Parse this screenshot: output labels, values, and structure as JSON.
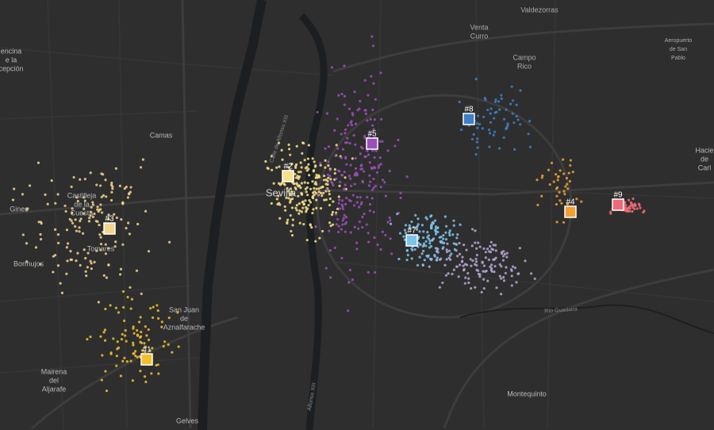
{
  "clusters": [
    {
      "label": "#1",
      "color": "#f0c02e"
    },
    {
      "label": "#2",
      "color": "#f7e08a"
    },
    {
      "label": "#3",
      "color": "#f3d48c"
    },
    {
      "label": "#4",
      "color": "#f0a030"
    },
    {
      "label": "#5",
      "color": "#9b4fb8"
    },
    {
      "label": "#7",
      "color": "#7cc3ea"
    },
    {
      "label": "#8",
      "color": "#3f7fc8"
    },
    {
      "label": "#9",
      "color": "#ee6a78"
    }
  ],
  "places": [
    {
      "lines": [
        "Valdezorras"
      ]
    },
    {
      "lines": [
        "Venta",
        "Curro"
      ]
    },
    {
      "lines": [
        "Campo",
        "Rico"
      ]
    },
    {
      "lines": [
        "Aeropuerto",
        "de San",
        "Pablo"
      ]
    },
    {
      "lines": [
        "encina",
        "e la",
        "cepción"
      ]
    },
    {
      "lines": [
        "Camas"
      ]
    },
    {
      "lines": [
        "Castilleja",
        "de la",
        "Cuesta"
      ]
    },
    {
      "lines": [
        "Gines"
      ]
    },
    {
      "lines": [
        "Tomares"
      ]
    },
    {
      "lines": [
        "Bormujos"
      ]
    },
    {
      "lines": [
        "San Juan",
        "de",
        "Aznalfarache"
      ]
    },
    {
      "lines": [
        "Mairena",
        "del",
        "Aljarafe"
      ]
    },
    {
      "lines": [
        "Gelves"
      ]
    },
    {
      "lines": [
        "Sevilla"
      ]
    },
    {
      "lines": [
        "Montequinto"
      ]
    },
    {
      "lines": [
        "Hacie",
        "de",
        "Carl"
      ]
    },
    {
      "lines": [
        "Río Guadaira"
      ]
    },
    {
      "lines": [
        "Calle de Alfonso XIII"
      ]
    },
    {
      "lines": [
        "Alfonso XIII"
      ]
    }
  ]
}
